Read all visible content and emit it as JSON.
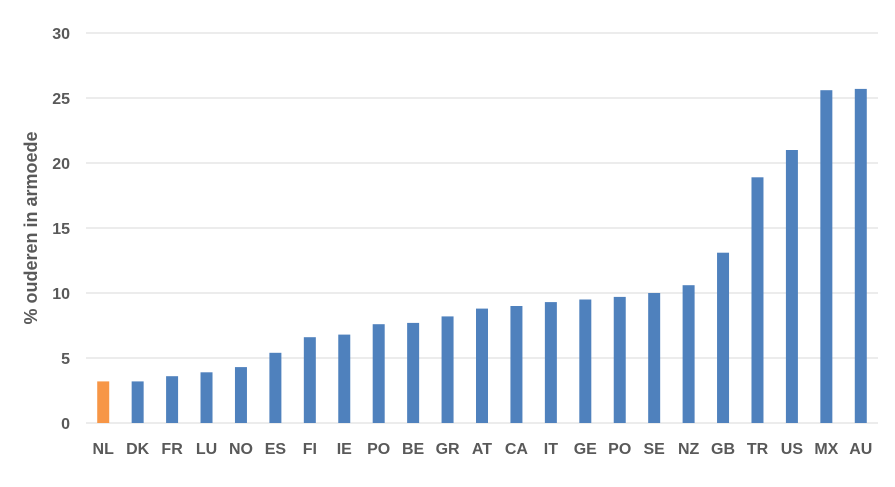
{
  "chart_data": {
    "type": "bar",
    "title": "",
    "xlabel": "",
    "ylabel": "% ouderen in armoede",
    "ylim": [
      0,
      30
    ],
    "yticks": [
      0,
      5,
      10,
      15,
      20,
      25,
      30
    ],
    "grid": true,
    "legend": "none",
    "categories": [
      "NL",
      "DK",
      "FR",
      "LU",
      "NO",
      "ES",
      "FI",
      "IE",
      "PO",
      "BE",
      "GR",
      "AT",
      "CA",
      "IT",
      "GE",
      "PO",
      "SE",
      "NZ",
      "GB",
      "TR",
      "US",
      "MX",
      "AU"
    ],
    "values": [
      3.2,
      3.2,
      3.6,
      3.9,
      4.3,
      5.4,
      6.6,
      6.8,
      7.6,
      7.7,
      8.2,
      8.8,
      9.0,
      9.3,
      9.5,
      9.7,
      10.0,
      10.6,
      13.1,
      18.9,
      21.0,
      25.6,
      25.7
    ],
    "colors": {
      "default": "#4f81bd",
      "highlight": "#f79646",
      "highlight_category": "NL"
    }
  }
}
